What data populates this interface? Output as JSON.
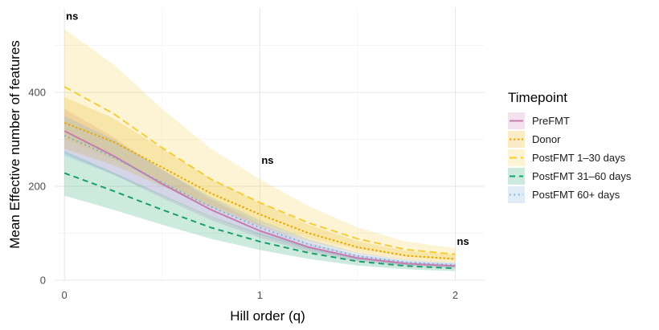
{
  "chart_data": {
    "type": "line",
    "xlabel": "Hill order (q)",
    "ylabel": "Mean Effective number of features",
    "xlim": [
      -0.05,
      2.15
    ],
    "ylim": [
      -2,
      580
    ],
    "x_ticks": [
      0,
      1,
      2
    ],
    "y_ticks": [
      0,
      200,
      400
    ],
    "grid": true,
    "x": [
      0,
      0.25,
      0.5,
      0.75,
      1,
      1.25,
      1.5,
      1.75,
      2
    ],
    "legend": {
      "title": "Timepoint",
      "position": "right"
    },
    "series": [
      {
        "name": "PreFMT",
        "color": "#C77CAE",
        "dash": "solid",
        "values": [
          318,
          265,
          205,
          150,
          105,
          70,
          47,
          35,
          30
        ],
        "lower": [
          270,
          225,
          175,
          128,
          90,
          60,
          40,
          30,
          25
        ],
        "upper": [
          365,
          305,
          235,
          172,
          120,
          80,
          54,
          40,
          35
        ]
      },
      {
        "name": "Donor",
        "color": "#E6A800",
        "dash": "dotted",
        "values": [
          335,
          295,
          240,
          185,
          140,
          100,
          70,
          52,
          45
        ],
        "lower": [
          280,
          245,
          200,
          155,
          115,
          82,
          57,
          42,
          36
        ],
        "upper": [
          390,
          345,
          280,
          215,
          165,
          118,
          83,
          62,
          54
        ]
      },
      {
        "name": "PostFMT 1–30 days",
        "color": "#F3CD3A",
        "dash": "longdash",
        "values": [
          412,
          355,
          282,
          215,
          165,
          122,
          88,
          65,
          55
        ],
        "lower": [
          300,
          258,
          205,
          160,
          122,
          90,
          66,
          50,
          42
        ],
        "upper": [
          535,
          460,
          365,
          280,
          215,
          158,
          112,
          82,
          68
        ]
      },
      {
        "name": "PostFMT 31–60 days",
        "color": "#1B9E6F",
        "dash": "dashed",
        "values": [
          228,
          190,
          150,
          112,
          82,
          58,
          40,
          30,
          25
        ],
        "lower": [
          180,
          150,
          118,
          88,
          64,
          45,
          31,
          23,
          19
        ],
        "upper": [
          275,
          230,
          182,
          136,
          100,
          70,
          49,
          37,
          31
        ]
      },
      {
        "name": "PostFMT 60+ days",
        "color": "#6FA8D6",
        "dash": "dotted-sparse",
        "values": [
          308,
          262,
          208,
          156,
          112,
          76,
          51,
          38,
          32
        ],
        "lower": [
          265,
          225,
          180,
          135,
          96,
          65,
          43,
          32,
          27
        ],
        "upper": [
          350,
          300,
          236,
          177,
          128,
          87,
          58,
          43,
          37
        ]
      }
    ],
    "annotations": [
      {
        "text": "ns",
        "x": 0,
        "y": 555
      },
      {
        "text": "ns",
        "x": 1,
        "y": 248
      },
      {
        "text": "ns",
        "x": 2,
        "y": 75
      }
    ]
  }
}
